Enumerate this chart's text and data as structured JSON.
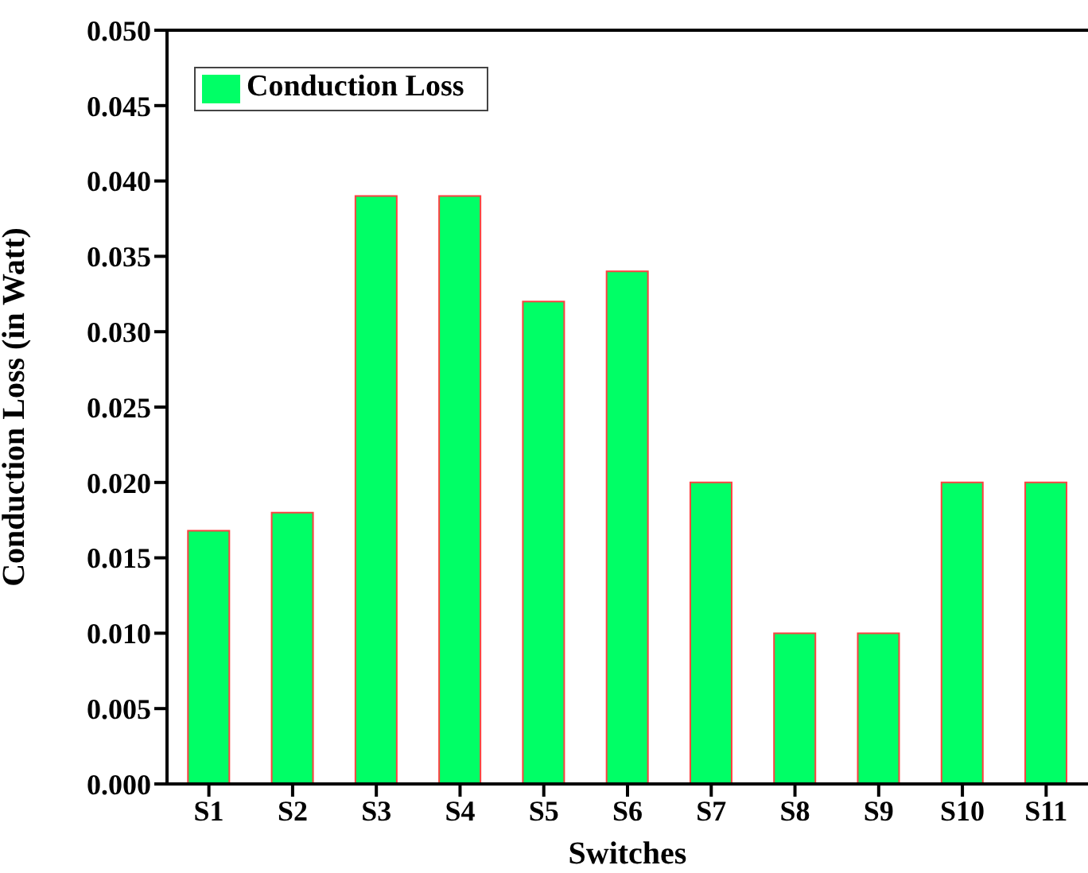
{
  "chart_data": {
    "type": "bar",
    "xlabel": "Switches",
    "ylabel": "Conduction Loss (in Watt)",
    "categories": [
      "S1",
      "S2",
      "S3",
      "S4",
      "S5",
      "S6",
      "S7",
      "S8",
      "S9",
      "S10",
      "S11"
    ],
    "series": [
      {
        "name": "Conduction Loss",
        "color": "#00ff66",
        "values": [
          0.0168,
          0.018,
          0.039,
          0.039,
          0.032,
          0.034,
          0.02,
          0.01,
          0.01,
          0.02,
          0.02
        ]
      }
    ],
    "ylim": [
      0,
      0.05
    ],
    "yticks": [
      {
        "value": 0,
        "label": "0.000"
      },
      {
        "value": 0.005,
        "label": "0.005"
      },
      {
        "value": 0.01,
        "label": "0.010"
      },
      {
        "value": 0.015,
        "label": "0.015"
      },
      {
        "value": 0.02,
        "label": "0.020"
      },
      {
        "value": 0.025,
        "label": "0.025"
      },
      {
        "value": 0.03,
        "label": "0.030"
      },
      {
        "value": 0.035,
        "label": "0.035"
      },
      {
        "value": 0.04,
        "label": "0.040"
      },
      {
        "value": 0.045,
        "label": "0.045"
      },
      {
        "value": 0.05,
        "label": "0.050"
      }
    ],
    "legend": "top left",
    "grid": false
  }
}
